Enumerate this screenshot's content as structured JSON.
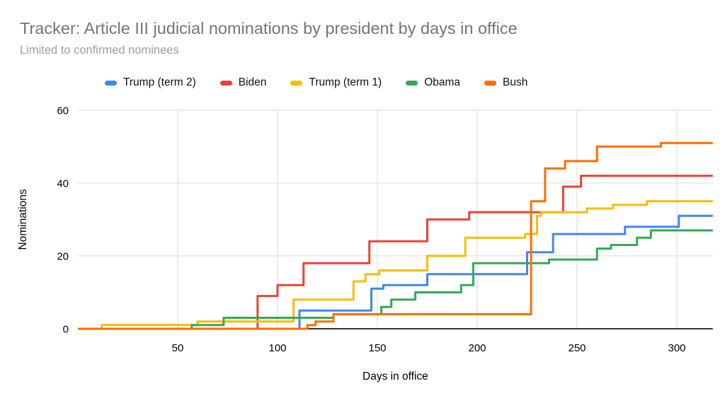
{
  "title": "Tracker: Article III judicial nominations by president by days in office",
  "subtitle": "Limited to confirmed nominees",
  "chart_data": {
    "type": "line",
    "subtype": "step-after",
    "title": "Tracker: Article III judicial nominations by president by days in office",
    "subtitle": "Limited to confirmed nominees",
    "xlabel": "Days in office",
    "ylabel": "Nominations",
    "xlim": [
      0,
      318
    ],
    "ylim": [
      0,
      60
    ],
    "x_ticks": [
      50,
      100,
      150,
      200,
      250,
      300
    ],
    "y_ticks": [
      0,
      20,
      40,
      60
    ],
    "grid": true,
    "legend_position": "top",
    "series": [
      {
        "name": "Trump (term 2)",
        "color": "#4285f4",
        "start": [
          0,
          0
        ],
        "steps": [
          [
            111,
            5
          ],
          [
            147,
            11
          ],
          [
            153,
            12
          ],
          [
            175,
            15
          ],
          [
            225,
            21
          ],
          [
            238,
            26
          ],
          [
            274,
            28
          ],
          [
            301,
            31
          ]
        ],
        "final_value": 31
      },
      {
        "name": "Biden",
        "color": "#ea4335",
        "start": [
          0,
          0
        ],
        "steps": [
          [
            90,
            9
          ],
          [
            100,
            12
          ],
          [
            113,
            18
          ],
          [
            146,
            24
          ],
          [
            175,
            30
          ],
          [
            196,
            32
          ],
          [
            243,
            39
          ],
          [
            252,
            42
          ]
        ],
        "final_value": 42
      },
      {
        "name": "Trump (term 1)",
        "color": "#fbbc04",
        "start": [
          0,
          0
        ],
        "steps": [
          [
            12,
            1
          ],
          [
            60,
            2
          ],
          [
            108,
            8
          ],
          [
            138,
            13
          ],
          [
            144,
            15
          ],
          [
            151,
            16
          ],
          [
            175,
            20
          ],
          [
            194,
            25
          ],
          [
            224,
            26
          ],
          [
            230,
            31
          ],
          [
            232,
            32
          ],
          [
            255,
            33
          ],
          [
            268,
            34
          ],
          [
            285,
            35
          ]
        ],
        "final_value": 35
      },
      {
        "name": "Obama",
        "color": "#34a853",
        "start": [
          0,
          0
        ],
        "steps": [
          [
            57,
            1
          ],
          [
            73,
            3
          ],
          [
            128,
            4
          ],
          [
            152,
            6
          ],
          [
            157,
            8
          ],
          [
            169,
            10
          ],
          [
            192,
            12
          ],
          [
            198,
            18
          ],
          [
            236,
            19
          ],
          [
            260,
            22
          ],
          [
            267,
            23
          ],
          [
            280,
            25
          ],
          [
            287,
            27
          ]
        ],
        "final_value": 27
      },
      {
        "name": "Bush",
        "color": "#ff6d01",
        "start": [
          0,
          0
        ],
        "steps": [
          [
            115,
            1
          ],
          [
            119,
            2
          ],
          [
            128,
            4
          ],
          [
            227,
            35
          ],
          [
            234,
            44
          ],
          [
            244,
            46
          ],
          [
            260,
            50
          ],
          [
            292,
            51
          ]
        ],
        "final_value": 51
      }
    ]
  },
  "style": {
    "gridline_color": "#dadada",
    "axis_line_color": "#333333",
    "title_color": "#757575",
    "subtitle_color": "#9e9e9e",
    "tick_color": "#000000",
    "background": "#ffffff"
  }
}
